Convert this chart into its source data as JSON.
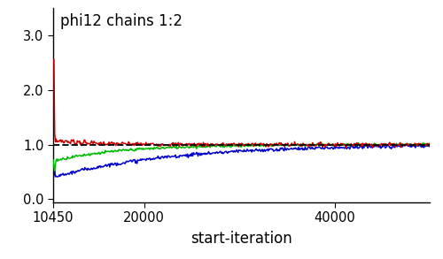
{
  "title": "phi12 chains 1:2",
  "xlabel": "start-iteration",
  "ylabel": "",
  "xlim": [
    10450,
    50000
  ],
  "ylim": [
    -0.05,
    3.5
  ],
  "yticks": [
    0.0,
    1.0,
    2.0,
    3.0
  ],
  "xticks": [
    10450,
    20000,
    40000
  ],
  "hline_y": 1.0,
  "hline_color": "#111111",
  "hline_style": "--",
  "hline_lw": 1.4,
  "red_color": "#cc0000",
  "blue_color": "#0000cc",
  "green_color": "#00bb00",
  "line_lw": 1.1,
  "bg_color": "#ffffff",
  "x_start": 10450,
  "x_end": 50000,
  "n_points": 500
}
